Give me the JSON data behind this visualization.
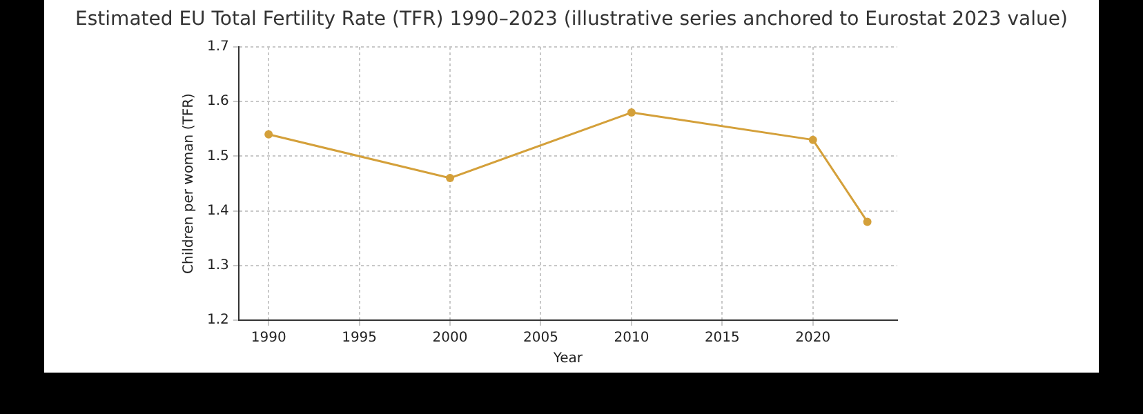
{
  "chart_data": {
    "type": "line",
    "title": "Estimated EU Total Fertility Rate (TFR) 1990–2023 (illustrative series anchored to Eurostat 2023 value)",
    "xlabel": "Year",
    "ylabel": "Children per woman (TFR)",
    "x": [
      1990,
      2000,
      2010,
      2020,
      2023
    ],
    "series": [
      {
        "color": "#d4a03a",
        "values": [
          1.54,
          1.46,
          1.58,
          1.53,
          1.38
        ]
      }
    ],
    "xlim": [
      1988.35,
      2024.65
    ],
    "xticks": [
      1990,
      1995,
      2000,
      2005,
      2010,
      2015,
      2020
    ],
    "ylim": [
      1.2,
      1.7
    ],
    "yticks": [
      1.2,
      1.3,
      1.4,
      1.5,
      1.6,
      1.7
    ],
    "grid": true,
    "marker": "circle",
    "line_style": "solid",
    "legend": false
  }
}
